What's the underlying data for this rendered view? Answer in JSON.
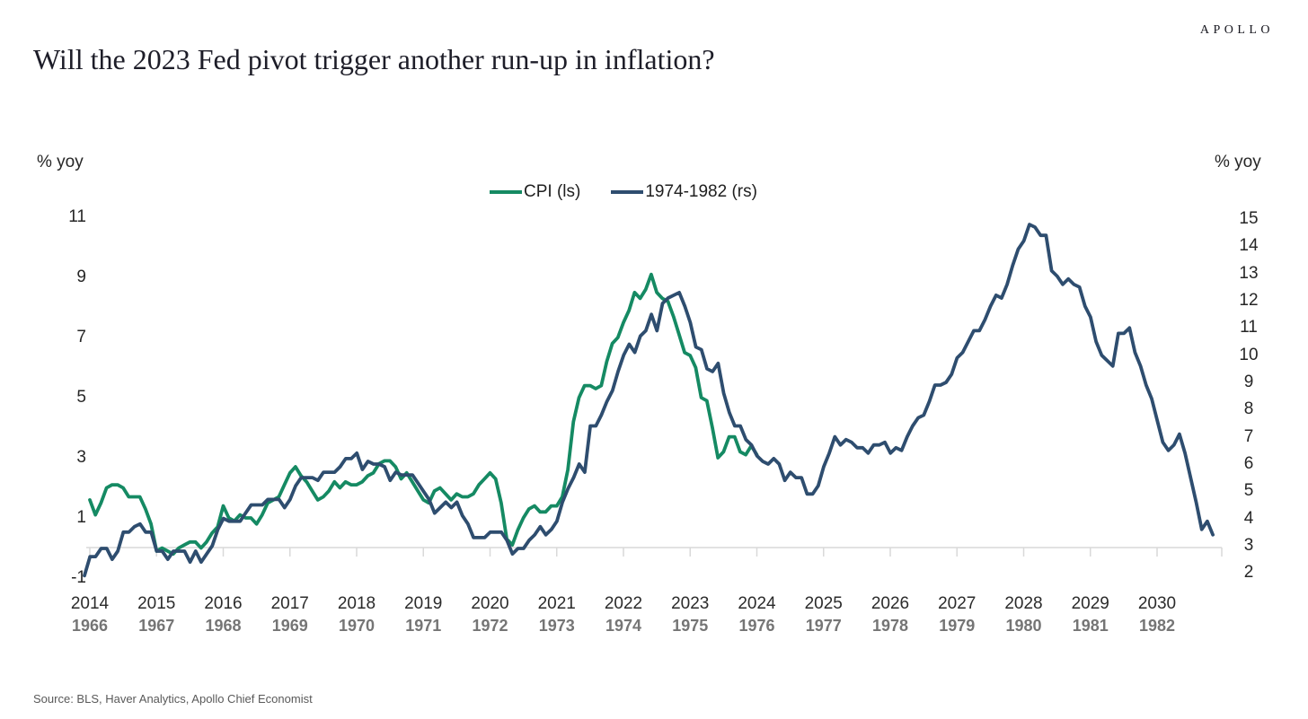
{
  "header": {
    "logo": "APOLLO"
  },
  "footer": {
    "source": "Source: BLS, Haver Analytics, Apollo Chief Economist"
  },
  "colors": {
    "cpi_line": "#158a63",
    "overlay_line": "#2e4d6f",
    "axis_line": "#d9d9d9",
    "title_text": "#1d1d28",
    "year_row_primary": "#2b2b2b",
    "year_row_secondary": "#757575"
  },
  "chart_data": {
    "type": "line",
    "title": "Will the 2023 Fed pivot trigger another run-up in inflation?",
    "left_axis": {
      "label": "% yoy",
      "min": -1,
      "max": 11,
      "ticks": [
        11,
        9,
        7,
        5,
        3,
        1,
        -1
      ]
    },
    "right_axis": {
      "label": "% yoy",
      "min": 2,
      "max": 15,
      "ticks": [
        15,
        14,
        13,
        12,
        11,
        10,
        9,
        8,
        7,
        6,
        5,
        4,
        3,
        2
      ]
    },
    "x_axis": {
      "years_top": [
        "2014",
        "2015",
        "2016",
        "2017",
        "2018",
        "2019",
        "2020",
        "2021",
        "2022",
        "2023",
        "2024",
        "2025",
        "2026",
        "2027",
        "2028",
        "2029",
        "2030"
      ],
      "years_bottom": [
        "1966",
        "1967",
        "1968",
        "1969",
        "1970",
        "1971",
        "1972",
        "1973",
        "1974",
        "1975",
        "1976",
        "1977",
        "1978",
        "1979",
        "1980",
        "1981",
        "1982"
      ]
    },
    "legend_position": "top-center",
    "grid": false,
    "series": [
      {
        "name": "CPI (ls)",
        "axis": "left",
        "start": "2014-01",
        "frequency": "monthly",
        "values": [
          1.6,
          1.1,
          1.5,
          2.0,
          2.1,
          2.1,
          2.0,
          1.7,
          1.7,
          1.7,
          1.3,
          0.8,
          -0.1,
          0.0,
          -0.1,
          -0.2,
          0.0,
          0.1,
          0.2,
          0.2,
          0.0,
          0.2,
          0.5,
          0.7,
          1.4,
          1.0,
          0.9,
          1.1,
          1.0,
          1.0,
          0.8,
          1.1,
          1.5,
          1.6,
          1.7,
          2.1,
          2.5,
          2.7,
          2.4,
          2.2,
          1.9,
          1.6,
          1.7,
          1.9,
          2.2,
          2.0,
          2.2,
          2.1,
          2.1,
          2.2,
          2.4,
          2.5,
          2.8,
          2.9,
          2.9,
          2.7,
          2.3,
          2.5,
          2.2,
          1.9,
          1.6,
          1.5,
          1.9,
          2.0,
          1.8,
          1.6,
          1.8,
          1.7,
          1.7,
          1.8,
          2.1,
          2.3,
          2.5,
          2.3,
          1.5,
          0.3,
          0.1,
          0.6,
          1.0,
          1.3,
          1.4,
          1.2,
          1.2,
          1.4,
          1.4,
          1.7,
          2.6,
          4.2,
          5.0,
          5.4,
          5.4,
          5.3,
          5.4,
          6.2,
          6.8,
          7.0,
          7.5,
          7.9,
          8.5,
          8.3,
          8.6,
          9.1,
          8.5,
          8.3,
          8.2,
          7.7,
          7.1,
          6.5,
          6.4,
          6.0,
          5.0,
          4.9,
          4.0,
          3.0,
          3.2,
          3.7,
          3.7,
          3.2,
          3.1,
          3.4,
          3.1
        ]
      },
      {
        "name": "1974-1982 (rs)",
        "axis": "right",
        "start": "1966-01",
        "frequency": "monthly",
        "values": [
          1.9,
          2.6,
          2.6,
          2.9,
          2.9,
          2.5,
          2.8,
          3.5,
          3.5,
          3.7,
          3.8,
          3.5,
          3.5,
          2.8,
          2.8,
          2.5,
          2.8,
          2.8,
          2.8,
          2.4,
          2.8,
          2.4,
          2.7,
          3.0,
          3.6,
          4.0,
          3.9,
          3.9,
          3.9,
          4.2,
          4.5,
          4.5,
          4.5,
          4.7,
          4.7,
          4.7,
          4.4,
          4.7,
          5.2,
          5.5,
          5.5,
          5.5,
          5.4,
          5.7,
          5.7,
          5.7,
          5.9,
          6.2,
          6.2,
          6.4,
          5.8,
          6.1,
          6.0,
          6.0,
          5.9,
          5.4,
          5.7,
          5.6,
          5.6,
          5.6,
          5.3,
          5.0,
          4.7,
          4.2,
          4.4,
          4.6,
          4.4,
          4.6,
          4.1,
          3.8,
          3.3,
          3.3,
          3.3,
          3.5,
          3.5,
          3.5,
          3.2,
          2.7,
          2.9,
          2.9,
          3.2,
          3.4,
          3.7,
          3.4,
          3.6,
          3.9,
          4.6,
          5.1,
          5.5,
          6.0,
          5.7,
          7.4,
          7.4,
          7.8,
          8.3,
          8.7,
          9.4,
          10.0,
          10.4,
          10.1,
          10.7,
          10.9,
          11.5,
          10.9,
          11.9,
          12.1,
          12.2,
          12.3,
          11.8,
          11.2,
          10.3,
          10.2,
          9.5,
          9.4,
          9.7,
          8.6,
          7.9,
          7.4,
          7.4,
          6.9,
          6.7,
          6.3,
          6.1,
          6.0,
          6.2,
          6.0,
          5.4,
          5.7,
          5.5,
          5.5,
          4.9,
          4.9,
          5.2,
          5.9,
          6.4,
          7.0,
          6.7,
          6.9,
          6.8,
          6.6,
          6.6,
          6.4,
          6.7,
          6.7,
          6.8,
          6.4,
          6.6,
          6.5,
          7.0,
          7.4,
          7.7,
          7.8,
          8.3,
          8.9,
          8.9,
          9.0,
          9.3,
          9.9,
          10.1,
          10.5,
          10.9,
          10.9,
          11.3,
          11.8,
          12.2,
          12.1,
          12.6,
          13.3,
          13.9,
          14.2,
          14.8,
          14.7,
          14.4,
          14.4,
          13.1,
          12.9,
          12.6,
          12.8,
          12.6,
          12.5,
          11.8,
          11.4,
          10.5,
          10.0,
          9.8,
          9.6,
          10.8,
          10.8,
          11.0,
          10.1,
          9.6,
          8.9,
          8.4,
          7.6,
          6.8,
          6.5,
          6.7,
          7.1,
          6.4,
          5.5,
          4.6,
          3.6,
          3.9,
          3.4
        ]
      }
    ]
  }
}
